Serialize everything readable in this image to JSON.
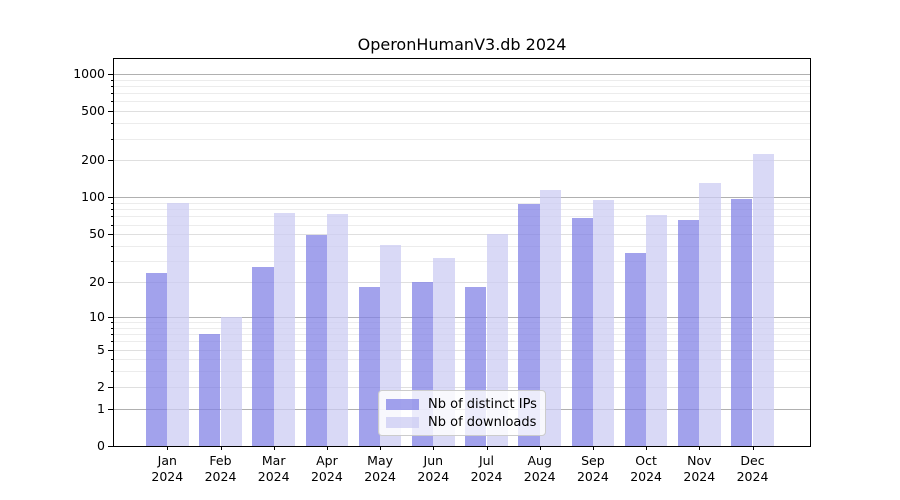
{
  "title": "OperonHumanV3.db 2024",
  "chart_data": {
    "type": "bar",
    "title": "OperonHumanV3.db 2024",
    "categories": [
      "Jan 2024",
      "Feb 2024",
      "Mar 2024",
      "Apr 2024",
      "May 2024",
      "Jun 2024",
      "Jul 2024",
      "Aug 2024",
      "Sep 2024",
      "Oct 2024",
      "Nov 2024",
      "Dec 2024"
    ],
    "month_labels": [
      {
        "line1": "Jan",
        "line2": "2024"
      },
      {
        "line1": "Feb",
        "line2": "2024"
      },
      {
        "line1": "Mar",
        "line2": "2024"
      },
      {
        "line1": "Apr",
        "line2": "2024"
      },
      {
        "line1": "May",
        "line2": "2024"
      },
      {
        "line1": "Jun",
        "line2": "2024"
      },
      {
        "line1": "Jul",
        "line2": "2024"
      },
      {
        "line1": "Aug",
        "line2": "2024"
      },
      {
        "line1": "Sep",
        "line2": "2024"
      },
      {
        "line1": "Oct",
        "line2": "2024"
      },
      {
        "line1": "Nov",
        "line2": "2024"
      },
      {
        "line1": "Dec",
        "line2": "2024"
      }
    ],
    "series": [
      {
        "name": "Nb of distinct IPs",
        "color": "#8383e6",
        "alpha": 0.75,
        "values": [
          24,
          7,
          27,
          49,
          18,
          20,
          18,
          88,
          68,
          35,
          66,
          97
        ]
      },
      {
        "name": "Nb of downloads",
        "color": "#ccccf3",
        "alpha": 0.75,
        "values": [
          90,
          10,
          75,
          73,
          41,
          32,
          50,
          115,
          95,
          72,
          130,
          225
        ]
      }
    ],
    "y_scale": "log10(1+x)",
    "y_ticks_labeled": [
      0,
      1,
      2,
      5,
      10,
      20,
      50,
      100,
      200,
      500,
      1000
    ],
    "y_ticks_major": [
      1,
      10,
      100,
      1000
    ],
    "y_ticks_mid": [
      2,
      5,
      20,
      50,
      200,
      500
    ],
    "y_ticks_minor": [
      3,
      4,
      6,
      7,
      8,
      9,
      30,
      40,
      60,
      70,
      80,
      90,
      300,
      400,
      600,
      700,
      800,
      900
    ],
    "ylim": [
      0,
      1317
    ],
    "grid": "both",
    "legend_position": "lower-center",
    "grid_color_major": "#b0b0b0",
    "grid_color_mid": "#dfdfdf",
    "grid_color_minor": "#ececec"
  },
  "legend": {
    "items": [
      {
        "label": "Nb of distinct IPs"
      },
      {
        "label": "Nb of downloads"
      }
    ]
  }
}
